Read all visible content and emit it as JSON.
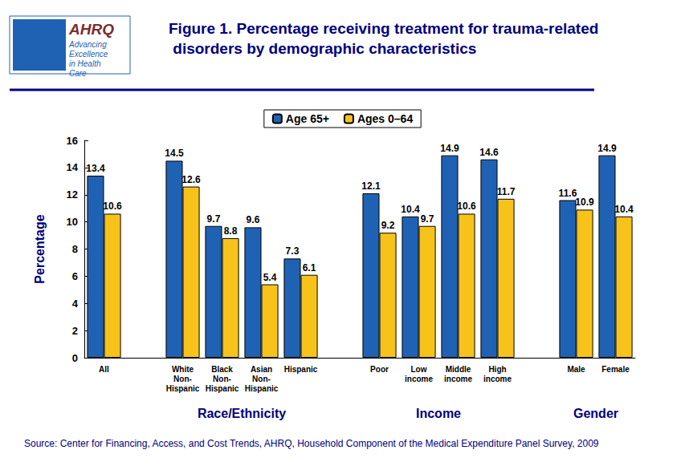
{
  "chart_data": {
    "type": "bar",
    "title": "Figure 1. Percentage receiving treatment for trauma-related disorders by demographic characteristics",
    "y_label": "Percentage",
    "categories": [
      "All",
      null,
      "White Non-Hispanic",
      "Black Non-Hispanic",
      "Asian Non-Hispanic",
      "Hispanic",
      null,
      "Poor",
      "Low income",
      "Middle income",
      "High income",
      null,
      "Male",
      "Female"
    ],
    "series": [
      {
        "name": "Age 65+",
        "color": "#1F62B3",
        "values": [
          13.4,
          null,
          14.5,
          9.7,
          9.6,
          7.3,
          null,
          12.1,
          10.4,
          14.9,
          14.6,
          null,
          11.6,
          14.9
        ]
      },
      {
        "name": "Ages 0–64",
        "color": "#F7C31B",
        "values": [
          10.6,
          null,
          12.6,
          8.8,
          5.4,
          6.1,
          null,
          9.2,
          9.7,
          10.6,
          11.7,
          null,
          10.9,
          10.4
        ]
      }
    ],
    "category_groups": [
      {
        "label": "Race/Ethnicity",
        "categories": [
          "White Non-Hispanic",
          "Black Non-Hispanic",
          "Asian Non-Hispanic",
          "Hispanic"
        ]
      },
      {
        "label": "Income",
        "categories": [
          "Poor",
          "Low income",
          "Middle income",
          "High income"
        ]
      },
      {
        "label": "Gender",
        "categories": [
          "Male",
          "Female"
        ]
      }
    ],
    "ylim": [
      0,
      16
    ],
    "yticks": [
      0,
      2,
      4,
      6,
      8,
      10,
      12,
      14,
      16
    ],
    "grid": false,
    "legend": "top",
    "data_labels": true,
    "source": "Source: Center for Financing, Access, and Cost Trends, AHRQ, Household Component of the Medical Expenditure Panel Survey, 2009"
  },
  "logo": {
    "name": "AHRQ",
    "tagline": "Advancing Excellence in Health Care"
  }
}
